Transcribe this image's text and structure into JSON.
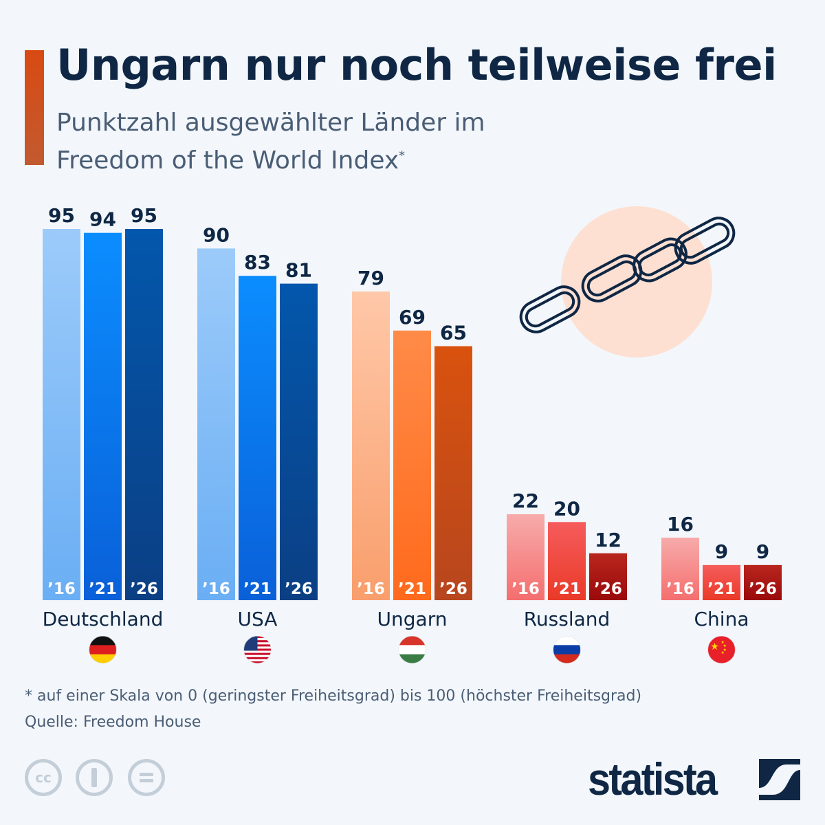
{
  "title": "Ungarn nur noch teilweise frei",
  "subtitle_line1": "Punktzahl ausgewählter Länder im",
  "subtitle_line2": "Freedom of the World Index",
  "subtitle_mark": "*",
  "chart_data": {
    "type": "bar",
    "categories": [
      "Deutschland",
      "USA",
      "Ungarn",
      "Russland",
      "China"
    ],
    "series": [
      {
        "name": "'16",
        "values": [
          95,
          90,
          79,
          22,
          16
        ]
      },
      {
        "name": "'21",
        "values": [
          94,
          83,
          69,
          20,
          9
        ]
      },
      {
        "name": "'26",
        "values": [
          95,
          81,
          65,
          12,
          9
        ]
      }
    ],
    "ylim": [
      0,
      100
    ],
    "grid": false,
    "colors": {
      "blue": [
        [
          "#9ccbfa",
          "#6aaef4"
        ],
        [
          "#0b8dff",
          "#0a60d8"
        ],
        [
          "#0357ac",
          "#0b3f84"
        ]
      ],
      "orange": [
        [
          "#ffc8a8",
          "#f99e6c"
        ],
        [
          "#ff8b48",
          "#ff6a1c"
        ],
        [
          "#d9520e",
          "#b7461e"
        ]
      ],
      "red": [
        [
          "#f7abab",
          "#f56e6e"
        ],
        [
          "#f55c5c",
          "#ea3a28"
        ],
        [
          "#b8261e",
          "#9a0a0a"
        ]
      ]
    },
    "flags": [
      "germany-flag",
      "usa-flag",
      "hungary-flag",
      "russia-flag",
      "china-flag"
    ]
  },
  "footnote": "* auf einer Skala von 0 (geringster Freiheitsgrad) bis 100 (höchster Freiheitsgrad)",
  "source": "Quelle: Freedom House",
  "license_icons": [
    "cc-icon",
    "attribution-icon",
    "no-derivatives-icon"
  ],
  "cc_text": "cc",
  "logo": "statista"
}
